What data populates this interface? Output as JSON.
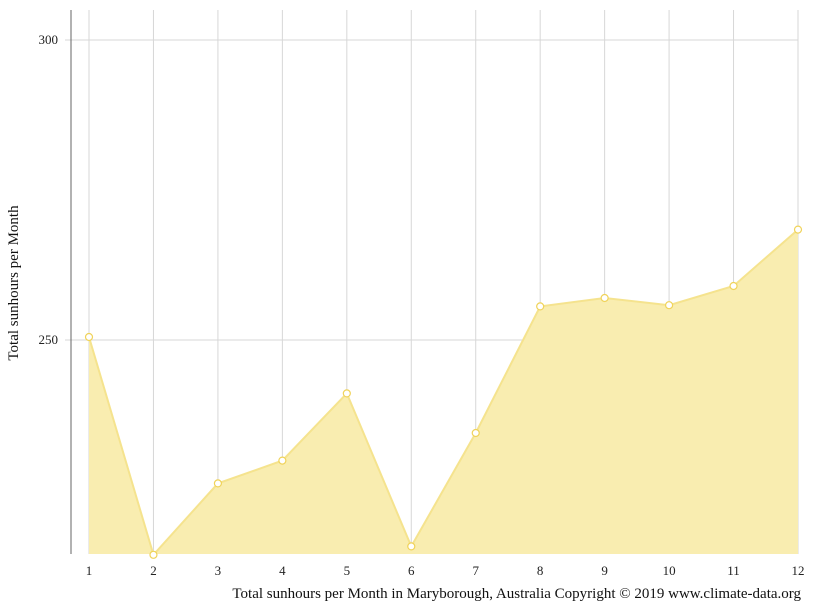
{
  "chart_data": {
    "type": "area",
    "x": [
      1,
      2,
      3,
      4,
      5,
      6,
      7,
      8,
      9,
      10,
      11,
      12
    ],
    "series": [
      {
        "values": [
          250.5,
          214.2,
          226.1,
          229.9,
          241.1,
          215.6,
          234.5,
          255.6,
          257.0,
          255.8,
          259.0,
          268.4
        ]
      }
    ],
    "xticks": [
      "1",
      "2",
      "3",
      "4",
      "5",
      "6",
      "7",
      "8",
      "9",
      "10",
      "11",
      "12"
    ],
    "yticks": [
      "250",
      "300"
    ],
    "ylim": [
      214.2,
      305
    ],
    "xlabel": "",
    "ylabel": "Total sunhours per Month",
    "caption": "Total sunhours per Month in Maryborough, Australia Copyright © 2019 www.climate-data.org",
    "grid": true,
    "colors": {
      "fill": "#f9edb0",
      "line": "#f5e38e",
      "marker_fill": "#ffffff",
      "marker_stroke": "#f0d35a"
    }
  }
}
